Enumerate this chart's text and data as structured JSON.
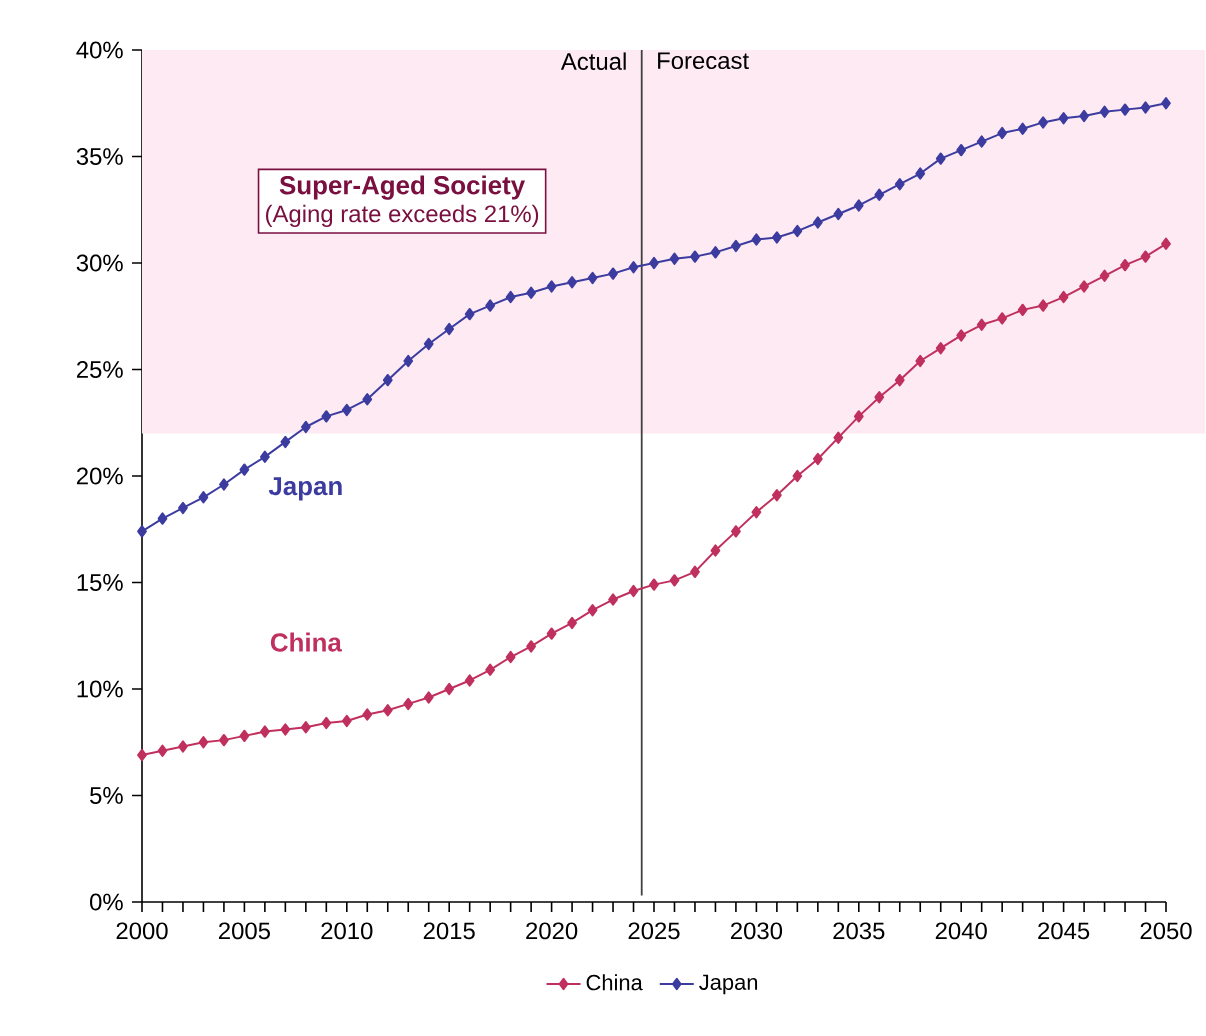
{
  "chart_data": {
    "type": "line",
    "x": [
      2000,
      2001,
      2002,
      2003,
      2004,
      2005,
      2006,
      2007,
      2008,
      2009,
      2010,
      2011,
      2012,
      2013,
      2014,
      2015,
      2016,
      2017,
      2018,
      2019,
      2020,
      2021,
      2022,
      2023,
      2024,
      2025,
      2026,
      2027,
      2028,
      2029,
      2030,
      2031,
      2032,
      2033,
      2034,
      2035,
      2036,
      2037,
      2038,
      2039,
      2040,
      2041,
      2042,
      2043,
      2044,
      2045,
      2046,
      2047,
      2048,
      2049,
      2050
    ],
    "series": [
      {
        "name": "China",
        "color": "#c0305e",
        "values": [
          6.9,
          7.1,
          7.3,
          7.5,
          7.6,
          7.8,
          8.0,
          8.1,
          8.2,
          8.4,
          8.5,
          8.8,
          9.0,
          9.3,
          9.6,
          10.0,
          10.4,
          10.9,
          11.5,
          12.0,
          12.6,
          13.1,
          13.7,
          14.2,
          14.6,
          14.9,
          15.1,
          15.5,
          16.5,
          17.4,
          18.3,
          19.1,
          20.0,
          20.8,
          21.8,
          22.8,
          23.7,
          24.5,
          25.4,
          26.0,
          26.6,
          27.1,
          27.4,
          27.8,
          28.0,
          28.4,
          28.9,
          29.4,
          29.9,
          30.3,
          30.9
        ]
      },
      {
        "name": "Japan",
        "color": "#3c3ca0",
        "values": [
          17.4,
          18.0,
          18.5,
          19.0,
          19.6,
          20.3,
          20.9,
          21.6,
          22.3,
          22.8,
          23.1,
          23.6,
          24.5,
          25.4,
          26.2,
          26.9,
          27.6,
          28.0,
          28.4,
          28.6,
          28.9,
          29.1,
          29.3,
          29.5,
          29.8,
          30.0,
          30.2,
          30.3,
          30.5,
          30.8,
          31.1,
          31.2,
          31.5,
          31.9,
          32.3,
          32.7,
          33.2,
          33.7,
          34.2,
          34.9,
          35.3,
          35.7,
          36.1,
          36.3,
          36.6,
          36.8,
          36.9,
          37.1,
          37.2,
          37.3,
          37.5
        ]
      }
    ],
    "xlim": [
      2000,
      2050
    ],
    "xticks": [
      2000,
      2005,
      2010,
      2015,
      2020,
      2025,
      2030,
      2035,
      2040,
      2045,
      2050
    ],
    "ylim": [
      0,
      40
    ],
    "yticks": [
      {
        "value": 0,
        "label": "0%"
      },
      {
        "value": 5,
        "label": "5%"
      },
      {
        "value": 10,
        "label": "10%"
      },
      {
        "value": 15,
        "label": "15%"
      },
      {
        "value": 20,
        "label": "20%"
      },
      {
        "value": 25,
        "label": "25%"
      },
      {
        "value": 30,
        "label": "30%"
      },
      {
        "value": 35,
        "label": "35%"
      },
      {
        "value": 40,
        "label": "40%"
      }
    ],
    "bands": [
      {
        "axis": "y",
        "from": 22,
        "to": 40,
        "color": "#fdeaf2"
      }
    ],
    "ref_lines": [
      {
        "axis": "x",
        "value": 2024.4,
        "color": "#404040"
      }
    ],
    "annotations": [
      "Super-Aged Society",
      "(Aging rate exceeds 21%)",
      "Actual",
      "Forecast"
    ],
    "marker": "diamond",
    "line_style": "solid",
    "legend": "bottom"
  }
}
